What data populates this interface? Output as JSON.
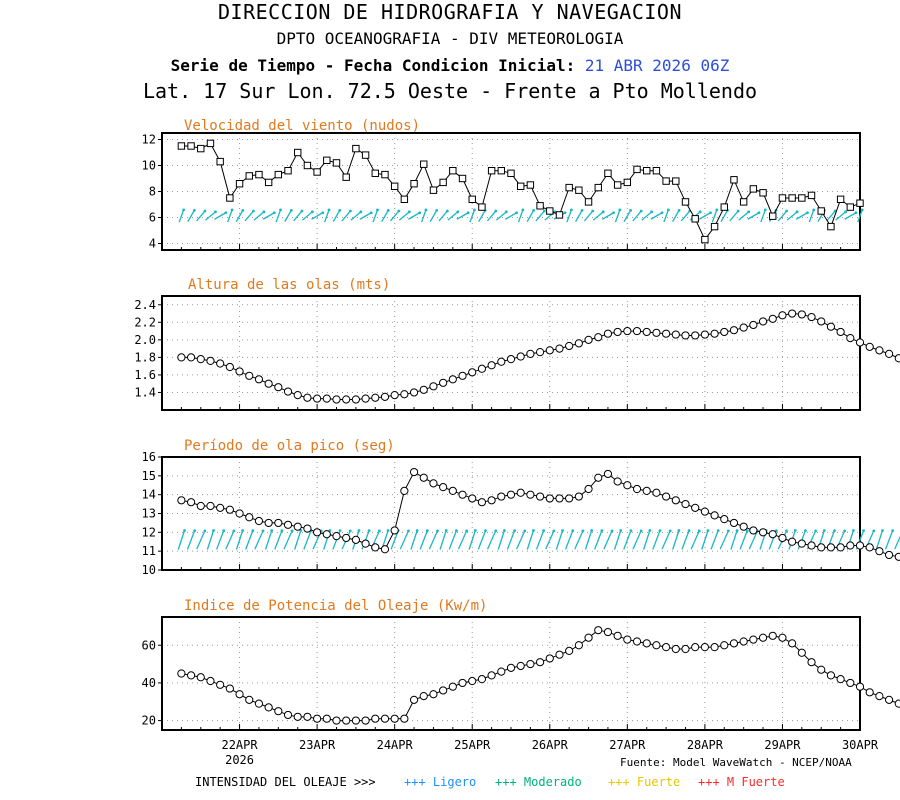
{
  "header": {
    "line1": "DIRECCION DE HIDROGRAFIA Y NAVEGACION",
    "line2": "DPTO OCEANOGRAFIA - DIV METEOROLOGIA",
    "line3_prefix": "Serie de Tiempo - Fecha Condicion Inicial:",
    "line3_date": "21 ABR 2026 06Z",
    "line4": "Lat. 17 Sur  Lon. 72.5 Oeste - Frente a Pto Mollendo"
  },
  "colors": {
    "title": "#e07a1f",
    "arrow": "#19b8c8",
    "grid": "#9a9a9a",
    "ligero": "#1e90ff",
    "moderado": "#00b37a",
    "fuerte": "#e6c800",
    "mfuerte": "#ff2a2a"
  },
  "x_axis": {
    "ticks": [
      "22APR",
      "23APR",
      "24APR",
      "25APR",
      "26APR",
      "27APR",
      "28APR",
      "29APR",
      "30APR"
    ],
    "year": "2026"
  },
  "footer": {
    "source": "Fuente: Model WaveWatch - NCEP/NOAA",
    "legend_title": "INTENSIDAD DEL OLEAJE >>>",
    "ligero": "+++ Ligero",
    "moderado": "+++ Moderado",
    "fuerte": "+++ Fuerte",
    "mfuerte": "+++ M Fuerte"
  },
  "chart_data": [
    {
      "type": "line",
      "title": "Velocidad del viento (nudos)",
      "x_start": "21APR 06Z",
      "x_step_hours": 3,
      "ylim": [
        3.5,
        12.5
      ],
      "yticks": [
        4,
        6,
        8,
        10,
        12
      ],
      "grid": true,
      "direction_arrows": true,
      "values": [
        11.5,
        11.5,
        11.3,
        11.7,
        10.3,
        7.5,
        8.6,
        9.2,
        9.3,
        8.7,
        9.3,
        9.6,
        11.0,
        10.0,
        9.5,
        10.4,
        10.2,
        9.1,
        11.3,
        10.8,
        9.4,
        9.3,
        8.4,
        7.4,
        8.6,
        10.1,
        8.1,
        8.7,
        9.6,
        9.0,
        7.4,
        6.8,
        9.6,
        9.6,
        9.4,
        8.4,
        8.5,
        6.9,
        6.5,
        6.2,
        8.3,
        8.1,
        7.2,
        8.3,
        9.4,
        8.5,
        8.7,
        9.7,
        9.6,
        9.6,
        8.8,
        8.8,
        7.2,
        5.9,
        4.3,
        5.3,
        6.8,
        8.9,
        7.2,
        8.2,
        7.9,
        6.1,
        7.5,
        7.5,
        7.5,
        7.7,
        6.5,
        5.3,
        7.4,
        6.8,
        7.1
      ]
    },
    {
      "type": "line",
      "title": "Altura de las olas (mts)",
      "x_start": "21APR 06Z",
      "x_step_hours": 3,
      "ylim": [
        1.2,
        2.5
      ],
      "yticks": [
        1.4,
        1.6,
        1.8,
        2.0,
        2.2,
        2.4
      ],
      "grid": true,
      "values": [
        1.8,
        1.8,
        1.78,
        1.76,
        1.73,
        1.69,
        1.64,
        1.59,
        1.55,
        1.5,
        1.46,
        1.41,
        1.37,
        1.34,
        1.33,
        1.33,
        1.32,
        1.32,
        1.32,
        1.33,
        1.34,
        1.35,
        1.37,
        1.38,
        1.4,
        1.43,
        1.47,
        1.51,
        1.55,
        1.59,
        1.63,
        1.67,
        1.71,
        1.75,
        1.78,
        1.81,
        1.84,
        1.86,
        1.88,
        1.9,
        1.93,
        1.96,
        2.0,
        2.03,
        2.07,
        2.09,
        2.1,
        2.1,
        2.09,
        2.08,
        2.07,
        2.06,
        2.05,
        2.05,
        2.06,
        2.07,
        2.09,
        2.11,
        2.14,
        2.17,
        2.21,
        2.24,
        2.28,
        2.3,
        2.29,
        2.26,
        2.21,
        2.15,
        2.09,
        2.02,
        1.97,
        1.92,
        1.88,
        1.84,
        1.79,
        1.75,
        1.7
      ]
    },
    {
      "type": "line",
      "title": "Período de ola pico (seg)",
      "x_start": "21APR 06Z",
      "x_step_hours": 3,
      "ylim": [
        10,
        16
      ],
      "yticks": [
        10,
        11,
        12,
        13,
        14,
        15,
        16
      ],
      "grid": true,
      "direction_arrows": true,
      "values": [
        13.7,
        13.6,
        13.4,
        13.4,
        13.3,
        13.2,
        13.0,
        12.8,
        12.6,
        12.5,
        12.5,
        12.4,
        12.3,
        12.2,
        12.0,
        11.9,
        11.8,
        11.7,
        11.6,
        11.4,
        11.2,
        11.1,
        12.1,
        14.2,
        15.2,
        14.9,
        14.6,
        14.4,
        14.2,
        14.0,
        13.8,
        13.6,
        13.7,
        13.9,
        14.0,
        14.1,
        14.0,
        13.9,
        13.8,
        13.8,
        13.8,
        13.9,
        14.3,
        14.9,
        15.1,
        14.7,
        14.5,
        14.3,
        14.2,
        14.1,
        13.9,
        13.7,
        13.5,
        13.3,
        13.1,
        12.9,
        12.7,
        12.5,
        12.3,
        12.1,
        12.0,
        11.9,
        11.7,
        11.5,
        11.4,
        11.3,
        11.2,
        11.2,
        11.2,
        11.3,
        11.3,
        11.2,
        11.0,
        10.8,
        10.7
      ]
    },
    {
      "type": "line",
      "title": "Indice de Potencia del Oleaje (Kw/m)",
      "x_start": "21APR 06Z",
      "x_step_hours": 3,
      "ylim": [
        15,
        75
      ],
      "yticks": [
        20,
        40,
        60
      ],
      "grid": true,
      "values": [
        45,
        44,
        43,
        41,
        39,
        37,
        34,
        31,
        29,
        27,
        25,
        23,
        22,
        22,
        21,
        21,
        20,
        20,
        20,
        20,
        21,
        21,
        21,
        21,
        31,
        33,
        34,
        36,
        38,
        40,
        41,
        42,
        44,
        46,
        48,
        49,
        50,
        51,
        53,
        55,
        57,
        60,
        64,
        68,
        67,
        65,
        63,
        62,
        61,
        60,
        59,
        58,
        58,
        59,
        59,
        59,
        60,
        61,
        62,
        63,
        64,
        65,
        64,
        61,
        56,
        51,
        47,
        44,
        42,
        40,
        38,
        35,
        33,
        31,
        29
      ]
    }
  ]
}
